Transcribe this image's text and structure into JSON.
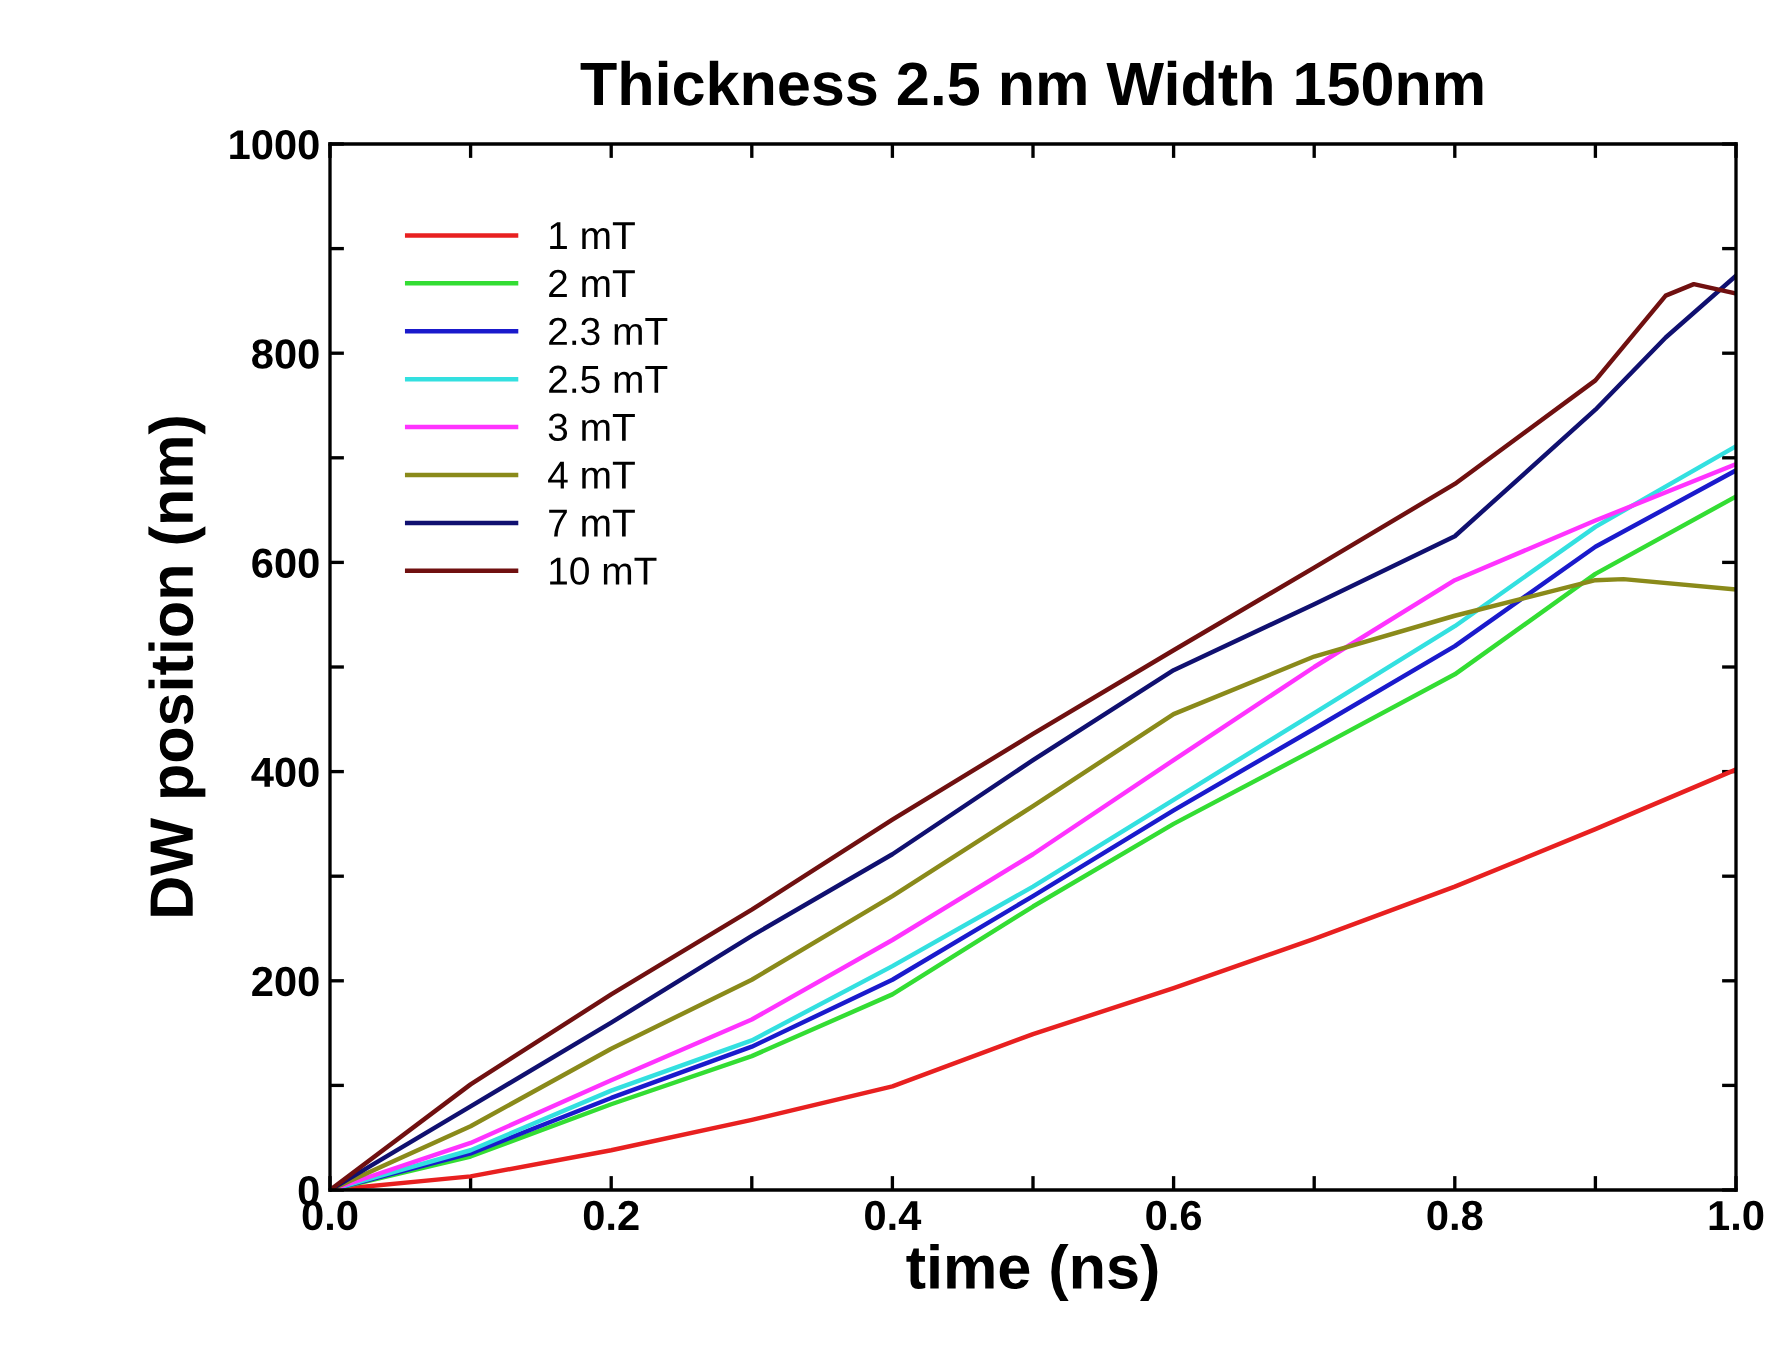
{
  "chart_data": {
    "type": "line",
    "title": "Thickness 2.5 nm Width 150nm",
    "xlabel": "time (ns)",
    "ylabel": "DW position (nm)",
    "xlim": [
      0,
      1
    ],
    "ylim": [
      0,
      1000
    ],
    "xticks": [
      {
        "value": 0,
        "label": "0.0"
      },
      {
        "value": 0.1,
        "label": null
      },
      {
        "value": 0.2,
        "label": "0.2"
      },
      {
        "value": 0.3,
        "label": null
      },
      {
        "value": 0.4,
        "label": "0.4"
      },
      {
        "value": 0.5,
        "label": null
      },
      {
        "value": 0.6,
        "label": "0.6"
      },
      {
        "value": 0.7,
        "label": null
      },
      {
        "value": 0.8,
        "label": "0.8"
      },
      {
        "value": 0.9,
        "label": null
      },
      {
        "value": 1,
        "label": "1.0"
      }
    ],
    "yticks": [
      0,
      {
        "value": 100,
        "label": null
      },
      200,
      {
        "value": 300,
        "label": null
      },
      400,
      {
        "value": 500,
        "label": null
      },
      600,
      {
        "value": 700,
        "label": null
      },
      800,
      {
        "value": 900,
        "label": null
      },
      1000
    ],
    "grid": false,
    "legend": "top left",
    "marker": "none",
    "line_style": "solid",
    "series": [
      {
        "name": "1 mT",
        "color": "#e82020",
        "x": [
          0,
          0.1,
          0.2,
          0.3,
          0.4,
          0.5,
          0.6,
          0.7,
          0.8,
          0.9,
          1.0
        ],
        "values": [
          0,
          13,
          38,
          67,
          99,
          149,
          193,
          240,
          290,
          345,
          402
        ]
      },
      {
        "name": "2 mT",
        "color": "#33dd33",
        "x": [
          0,
          0.1,
          0.2,
          0.3,
          0.4,
          0.5,
          0.6,
          0.7,
          0.8,
          0.9,
          1.0
        ],
        "values": [
          0,
          32,
          82,
          128,
          187,
          271,
          350,
          421,
          493,
          589,
          663
        ]
      },
      {
        "name": "2.3 mT",
        "color": "#1a1acc",
        "x": [
          0,
          0.1,
          0.2,
          0.3,
          0.4,
          0.5,
          0.6,
          0.7,
          0.8,
          0.9,
          1.0
        ],
        "values": [
          0,
          35,
          88,
          137,
          201,
          281,
          363,
          441,
          520,
          615,
          688
        ]
      },
      {
        "name": "2.5 mT",
        "color": "#33e0e0",
        "x": [
          0,
          0.1,
          0.2,
          0.3,
          0.4,
          0.5,
          0.6,
          0.7,
          0.8,
          0.9,
          1.0
        ],
        "values": [
          0,
          38,
          95,
          143,
          214,
          290,
          373,
          456,
          539,
          634,
          711
        ]
      },
      {
        "name": "3 mT",
        "color": "#ff33ff",
        "x": [
          0,
          0.1,
          0.2,
          0.3,
          0.4,
          0.5,
          0.6,
          0.7,
          0.8,
          0.9,
          1.0
        ],
        "values": [
          0,
          45,
          105,
          163,
          239,
          321,
          411,
          500,
          583,
          640,
          694
        ]
      },
      {
        "name": "4 mT",
        "color": "#8a8a1a",
        "x": [
          0,
          0.1,
          0.2,
          0.3,
          0.4,
          0.5,
          0.6,
          0.7,
          0.8,
          0.9,
          0.92,
          1.0
        ],
        "values": [
          0,
          61,
          135,
          201,
          281,
          367,
          455,
          510,
          549,
          583,
          584,
          574
        ]
      },
      {
        "name": "7 mT",
        "color": "#101070",
        "x": [
          0,
          0.1,
          0.2,
          0.3,
          0.4,
          0.5,
          0.6,
          0.7,
          0.8,
          0.9,
          0.95,
          1.0
        ],
        "values": [
          0,
          80,
          160,
          243,
          321,
          411,
          497,
          560,
          625,
          746,
          815,
          874
        ]
      },
      {
        "name": "10 mT",
        "color": "#701010",
        "x": [
          0,
          0.1,
          0.2,
          0.3,
          0.4,
          0.5,
          0.6,
          0.7,
          0.8,
          0.9,
          0.95,
          0.97,
          1.0
        ],
        "values": [
          0,
          101,
          187,
          268,
          354,
          436,
          516,
          595,
          675,
          774,
          855,
          866,
          857
        ]
      }
    ]
  }
}
